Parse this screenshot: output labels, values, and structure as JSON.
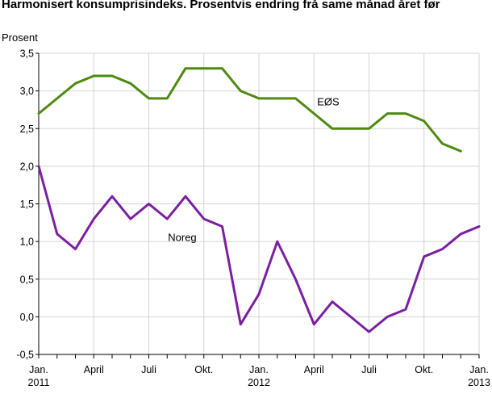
{
  "chart_data": {
    "type": "line",
    "title": "Harmonisert konsumprisindeks. Prosentvis endring frå same månad året før",
    "ylabel": "Prosent",
    "xlabel": "",
    "ylim": [
      -0.5,
      3.5
    ],
    "yticks": [
      "3,5",
      "3,0",
      "2,5",
      "2,0",
      "1,5",
      "1,0",
      "0,5",
      "0,0",
      "-0,5"
    ],
    "yticks_values": [
      3.5,
      3.0,
      2.5,
      2.0,
      1.5,
      1.0,
      0.5,
      0.0,
      -0.5
    ],
    "x_tick_labels": [
      {
        "index": 0,
        "line1": "Jan.",
        "line2": "2011"
      },
      {
        "index": 3,
        "line1": "April",
        "line2": ""
      },
      {
        "index": 6,
        "line1": "Juli",
        "line2": ""
      },
      {
        "index": 9,
        "line1": "Okt.",
        "line2": ""
      },
      {
        "index": 12,
        "line1": "Jan.",
        "line2": "2012"
      },
      {
        "index": 15,
        "line1": "April",
        "line2": ""
      },
      {
        "index": 18,
        "line1": "Juli",
        "line2": ""
      },
      {
        "index": 21,
        "line1": "Okt.",
        "line2": ""
      },
      {
        "index": 24,
        "line1": "Jan.",
        "line2": "2013"
      }
    ],
    "x_count": 25,
    "grid": true,
    "series": [
      {
        "name": "EØS",
        "color": "#4f8a10",
        "values": [
          2.7,
          2.9,
          3.1,
          3.2,
          3.2,
          3.1,
          2.9,
          2.9,
          3.3,
          3.3,
          3.3,
          3.0,
          2.9,
          2.9,
          2.9,
          2.7,
          2.5,
          2.5,
          2.5,
          2.7,
          2.7,
          2.6,
          2.3,
          2.2
        ]
      },
      {
        "name": "Noreg",
        "color": "#7b1fa2",
        "values": [
          2.0,
          1.1,
          0.9,
          1.3,
          1.6,
          1.3,
          1.5,
          1.3,
          1.6,
          1.3,
          1.2,
          -0.1,
          0.3,
          1.0,
          0.5,
          -0.1,
          0.2,
          0.0,
          -0.2,
          0.0,
          0.1,
          0.8,
          0.9,
          1.1,
          1.2
        ]
      }
    ]
  }
}
